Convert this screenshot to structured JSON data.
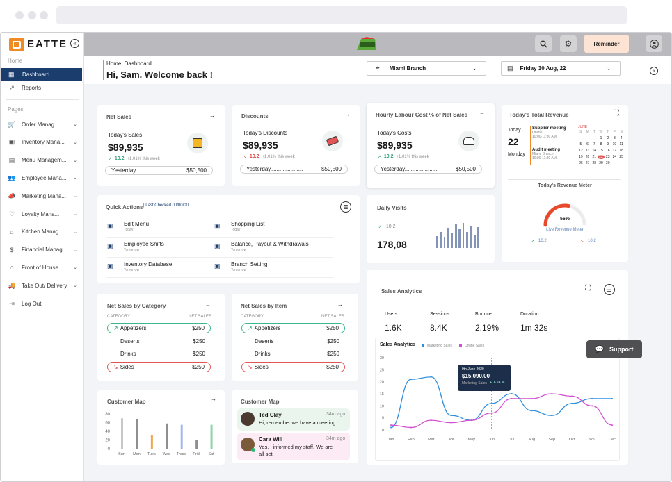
{
  "sidebar": {
    "brand": "EATTE",
    "home_label": "Home",
    "pages_label": "Pages",
    "items_home": [
      {
        "label": "Dashboard",
        "icon": "grid-icon",
        "active": true
      },
      {
        "label": "Reports",
        "icon": "chart-line-icon"
      }
    ],
    "items_pages": [
      {
        "label": "Order Manag..."
      },
      {
        "label": "Inventory Mana..."
      },
      {
        "label": "Menu Managem..."
      },
      {
        "label": "Employee Mana..."
      },
      {
        "label": "Marketing Mana..."
      },
      {
        "label": "Loyalty Mana..."
      },
      {
        "label": "Kitchen Manag..."
      },
      {
        "label": "Financial Manag..."
      },
      {
        "label": "Front of House"
      },
      {
        "label": "Take Out/ Delivery"
      },
      {
        "label": "Log Out"
      }
    ]
  },
  "topbar": {
    "reminder_label": "Reminder"
  },
  "header": {
    "breadcrumb": "Home| Dashboard",
    "welcome": "Hi, Sam. Welcome back !",
    "branch": "Miami Branch",
    "date": "Friday 30 Aug, 22"
  },
  "net_sales": {
    "title": "Net Sales",
    "today_label": "Today's Sales",
    "value": "$89,935",
    "delta": "10.2",
    "delta_note": "+1.01% this week",
    "yesterday_label": "Yesterday.....................",
    "yesterday_value": "$50,500"
  },
  "discounts": {
    "title": "Discounts",
    "today_label": "Today's Discounts",
    "value": "$89,935",
    "delta": "10.2",
    "delta_note": "+1.01% this week",
    "yesterday_label": "Yesterday.....................",
    "yesterday_value": "$50,500"
  },
  "labour": {
    "title": "Hourly Labour Cost % of Net Sales",
    "today_label": "Today's Costs",
    "value": "$89,935",
    "delta": "10.2",
    "delta_note": "+1.01% this week",
    "yesterday_label": "Yesterday.....................",
    "yesterday_value": "$50,500"
  },
  "revenue": {
    "title": "Today's Total Revenue",
    "today_label": "Today",
    "day_num": "22",
    "day_name": "Monday",
    "events": [
      {
        "title": "Supplier meeting",
        "sub1": "Online",
        "sub2": "10:00-11:30 AM"
      },
      {
        "title": "Audit meeting",
        "sub1": "Miami Branch",
        "sub2": "10:00-11:30 AM"
      }
    ],
    "month": "JUNE",
    "weekdays": [
      "S",
      "M",
      "T",
      "W",
      "T",
      "F",
      "S"
    ],
    "calendar_rows": [
      [
        "",
        "",
        "",
        "1",
        "2",
        "3",
        "4"
      ],
      [
        "5",
        "6",
        "7",
        "8",
        "9",
        "10",
        "11"
      ],
      [
        "12",
        "13",
        "14",
        "15",
        "16",
        "17",
        "18"
      ],
      [
        "19",
        "20",
        "21",
        "22",
        "23",
        "24",
        "25"
      ],
      [
        "26",
        "27",
        "28",
        "29",
        "30",
        "",
        ""
      ]
    ],
    "highlight_day": "22",
    "meter_title": "Today's Revenue Meter",
    "meter_value": 0.56,
    "meter_label": "56%",
    "meter_caption": "Live Revenue Meter",
    "meter_up": "10.2",
    "meter_down": "10.2"
  },
  "quick_actions": {
    "title": "Quick Actions",
    "last_checked": "Last Checked 00/00/00",
    "items": [
      {
        "label": "Edit Menu",
        "sub": "Today",
        "icon": "edit-icon"
      },
      {
        "label": "Shopping List",
        "sub": "Today",
        "icon": "clipboard-icon"
      },
      {
        "label": "Employee Shifts",
        "sub": "Tomorrow",
        "icon": "users-icon"
      },
      {
        "label": "Balance, Payout & Withdrawals",
        "sub": "Tomorrow",
        "icon": "refresh-icon"
      },
      {
        "label": "Inventory Database",
        "sub": "Tomorrow",
        "icon": "database-icon"
      },
      {
        "label": "Branch Setting",
        "sub": "Tomorrow",
        "icon": "branch-icon"
      }
    ]
  },
  "daily_visits": {
    "title": "Daily Visits",
    "delta": "10.2",
    "value": "178,08",
    "bars": [
      0.45,
      0.6,
      0.42,
      0.75,
      0.55,
      0.9,
      0.7,
      0.95,
      0.6,
      0.85,
      0.5,
      0.8
    ]
  },
  "by_category": {
    "title": "Net Sales by Category",
    "col1": "CATEGORY",
    "col2": "NET SALES",
    "rows": [
      {
        "name": "Appetizers",
        "value": "$250",
        "trend": "up"
      },
      {
        "name": "Deserts",
        "value": "$250",
        "trend": "none"
      },
      {
        "name": "Drinks",
        "value": "$250",
        "trend": "none"
      },
      {
        "name": "Sides",
        "value": "$250",
        "trend": "down"
      }
    ]
  },
  "by_item": {
    "title": "Net Sales by Item",
    "col1": "CATEGORY",
    "col2": "NET SALES",
    "rows": [
      {
        "name": "Appetizers",
        "value": "$250",
        "trend": "up"
      },
      {
        "name": "Deserts",
        "value": "$250",
        "trend": "none"
      },
      {
        "name": "Drinks",
        "value": "$250",
        "trend": "none"
      },
      {
        "name": "Sides",
        "value": "$250",
        "trend": "down"
      }
    ]
  },
  "sales_analytics": {
    "title": "Sales Analytics",
    "stats": [
      {
        "label": "Users",
        "value": "1.6K"
      },
      {
        "label": "Sessions",
        "value": "8.4K"
      },
      {
        "label": "Bounce",
        "value": "2.19%"
      },
      {
        "label": "Duration",
        "value": "1m 32s"
      }
    ],
    "support_label": "Support"
  },
  "customer_map_chart": {
    "title": "Customer Map"
  },
  "customer_map_msgs": {
    "title": "Customer Map",
    "messages": [
      {
        "name": "Ted Clay",
        "time": "34m ago",
        "text": "Hi, remember we have a meeting."
      },
      {
        "name": "Cara Will",
        "time": "34m ago",
        "text": "Yes, I informed my staff. We are all set."
      }
    ]
  },
  "chart_data": [
    {
      "type": "bar",
      "title": "Customer Map",
      "categories": [
        "Sun",
        "Mon",
        "Tues",
        "Wed",
        "Thurs",
        "Frid",
        "Sat"
      ],
      "ylim": [
        0,
        80
      ],
      "yticks": [
        "80",
        "60",
        "40",
        "20",
        "0"
      ],
      "series": [
        {
          "values": [
            70,
            68,
            32,
            58,
            55,
            20,
            55
          ]
        }
      ],
      "colors": [
        "#c7c7c7",
        "#8f8f8f",
        "#f0a64a",
        "#8f8f8f",
        "#a5b7ea",
        "#8f8f8f",
        "#8fd3a8"
      ]
    },
    {
      "type": "line",
      "title": "Sales Analytics",
      "x": [
        "Jan",
        "Feb",
        "Mar",
        "Apr",
        "May",
        "Jun",
        "Jul",
        "Aug",
        "Sep",
        "Oct",
        "Nov",
        "Dec"
      ],
      "ylim": [
        0,
        30
      ],
      "yticks": [
        "30",
        "25",
        "20",
        "15",
        "10",
        "5",
        "0"
      ],
      "series": [
        {
          "name": "Marketing Sales",
          "color": "#2f8fde",
          "values": [
            1,
            21,
            22,
            6,
            4,
            11,
            15,
            8,
            6,
            11,
            13,
            13
          ]
        },
        {
          "name": "Online Sales",
          "color": "#d14fd0",
          "values": [
            2,
            1,
            4,
            3,
            4,
            7,
            13,
            13,
            15,
            14,
            10,
            2
          ]
        }
      ],
      "tooltip": {
        "date": "9th June 2020",
        "value": "$15,090.00",
        "series": "Marketing Sales",
        "badge": "+16.24 %"
      }
    }
  ]
}
